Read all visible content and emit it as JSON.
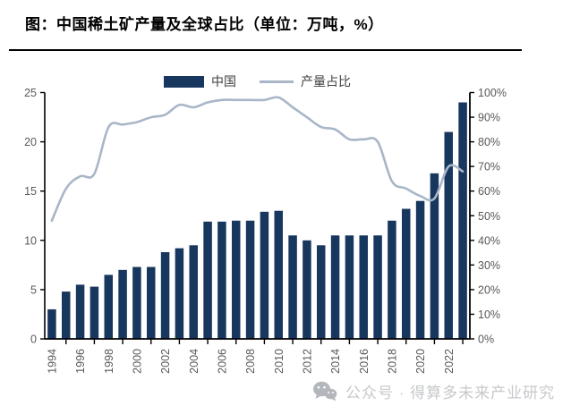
{
  "title": "图：中国稀土矿产量及全球占比（单位：万吨，%）",
  "legend": {
    "bar_label": "中国",
    "line_label": "产量占比"
  },
  "watermark": {
    "icon": "wechat-icon",
    "text": "公众号 · 得算多未来产业研究"
  },
  "colors": {
    "bar": "#17375e",
    "line": "#a8b6c8",
    "axis_text": "#595959",
    "spine": "#000000",
    "legend_text": "#404040",
    "watermark": "#c6c8cb"
  },
  "chart_data": {
    "type": "combo-bar-line",
    "title": "图：中国稀土矿产量及全球占比（单位：万吨，%）",
    "x": [
      1994,
      1995,
      1996,
      1997,
      1998,
      1999,
      2000,
      2001,
      2002,
      2003,
      2004,
      2005,
      2006,
      2007,
      2008,
      2009,
      2010,
      2011,
      2012,
      2013,
      2014,
      2015,
      2016,
      2017,
      2018,
      2019,
      2020,
      2021,
      2022,
      2023
    ],
    "series": [
      {
        "name": "中国",
        "type": "bar",
        "axis": "left",
        "unit": "万吨",
        "values": [
          3.0,
          4.8,
          5.5,
          5.3,
          6.5,
          7.0,
          7.3,
          7.3,
          8.8,
          9.2,
          9.5,
          11.9,
          11.9,
          12.0,
          12.0,
          12.9,
          13.0,
          10.5,
          10.0,
          9.5,
          10.5,
          10.5,
          10.5,
          10.5,
          12.0,
          13.2,
          14.0,
          16.8,
          21.0,
          24.0
        ]
      },
      {
        "name": "产量占比",
        "type": "line",
        "axis": "right",
        "unit": "%",
        "values": [
          48,
          61,
          66,
          67,
          86,
          87,
          88,
          90,
          91,
          95,
          94,
          96,
          97,
          97,
          97,
          97,
          98,
          94,
          90,
          86,
          85,
          81,
          81,
          80,
          64,
          61,
          58,
          57,
          70,
          68
        ]
      }
    ],
    "left_axis": {
      "min": 0,
      "max": 25,
      "step": 5,
      "tick_labels": [
        "0",
        "5",
        "10",
        "15",
        "20",
        "25"
      ]
    },
    "right_axis": {
      "min": 0,
      "max": 100,
      "step": 10,
      "tick_labels": [
        "0%",
        "10%",
        "20%",
        "30%",
        "40%",
        "50%",
        "60%",
        "70%",
        "80%",
        "90%",
        "100%"
      ]
    },
    "x_tick_labels": [
      "1994",
      "1996",
      "1998",
      "2000",
      "2002",
      "2004",
      "2006",
      "2008",
      "2010",
      "2012",
      "2014",
      "2016",
      "2018",
      "2020",
      "2022"
    ],
    "grid": false,
    "legend_position": "top-center",
    "x_label_rotation": -90
  }
}
